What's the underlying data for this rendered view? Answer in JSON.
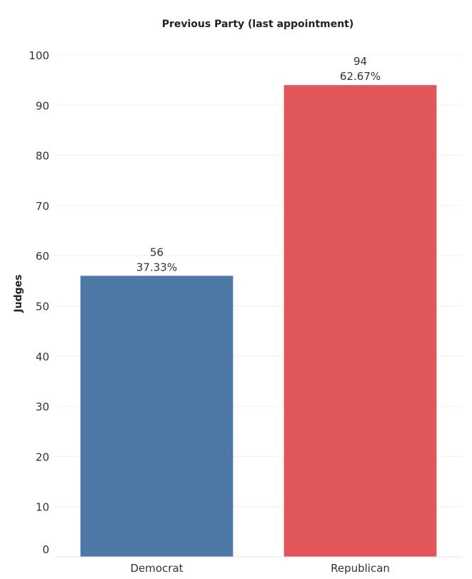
{
  "chart_data": {
    "type": "bar",
    "title": "Previous Party (last appointment)",
    "xlabel": "",
    "ylabel": "Judges",
    "ylim": [
      0,
      100
    ],
    "yticks": [
      0,
      10,
      20,
      30,
      40,
      50,
      60,
      70,
      80,
      90,
      100
    ],
    "categories": [
      "Democrat",
      "Republican"
    ],
    "values": [
      56,
      94
    ],
    "percent_labels": [
      "37.33%",
      "62.67%"
    ],
    "colors": [
      "#4e79a7",
      "#e15759"
    ],
    "grid": true
  }
}
